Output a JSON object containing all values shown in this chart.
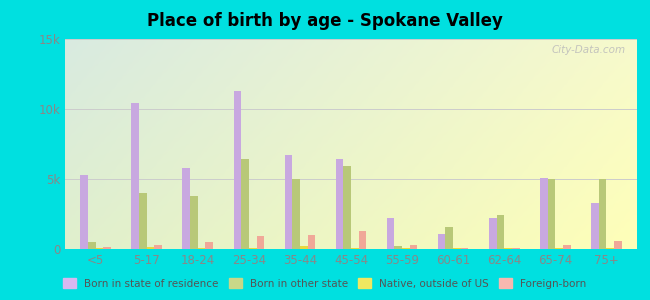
{
  "title": "Place of birth by age - Spokane Valley",
  "background_color": "#00e0e0",
  "categories": [
    "<5",
    "5-17",
    "18-24",
    "25-34",
    "35-44",
    "45-54",
    "55-59",
    "60-61",
    "62-64",
    "65-74",
    "75+"
  ],
  "series": {
    "Born in state of residence": {
      "color": "#c8a8e0",
      "values": [
        5300,
        10400,
        5800,
        11300,
        6700,
        6400,
        2200,
        1100,
        2200,
        5100,
        3300
      ]
    },
    "Born in other state": {
      "color": "#b8c878",
      "values": [
        500,
        4000,
        3800,
        6400,
        5000,
        5900,
        200,
        1600,
        2400,
        5000,
        5000
      ]
    },
    "Native, outside of US": {
      "color": "#e8d840",
      "values": [
        100,
        150,
        100,
        100,
        200,
        100,
        100,
        50,
        100,
        100,
        100
      ]
    },
    "Foreign-born": {
      "color": "#f0a898",
      "values": [
        150,
        300,
        500,
        900,
        1000,
        1300,
        300,
        100,
        100,
        300,
        600
      ]
    }
  },
  "ylim": [
    0,
    15000
  ],
  "yticks": [
    0,
    5000,
    10000,
    15000
  ],
  "ytick_labels": [
    "0",
    "5k",
    "10k",
    "15k"
  ],
  "bar_width": 0.15,
  "legend_items": [
    "Born in state of residence",
    "Born in other state",
    "Native, outside of US",
    "Foreign-born"
  ],
  "watermark": "City-Data.com"
}
